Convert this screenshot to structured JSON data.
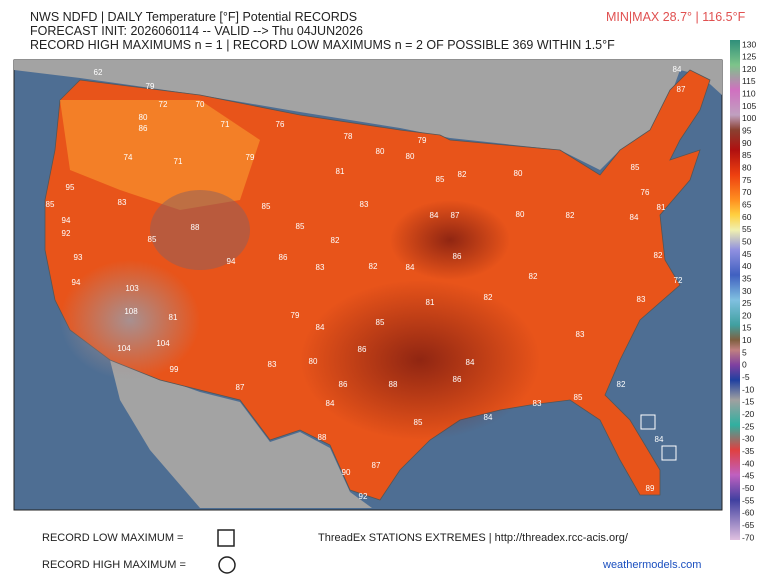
{
  "header": {
    "line1": "NWS NDFD | DAILY Temperature [°F] Potential RECORDS",
    "line2": "FORECAST INIT: 2026060114 -- VALID --> Thu 04JUN2026",
    "line3": "RECORD HIGH MAXIMUMS n = 1 | RECORD LOW MAXIMUMS n = 2 OF POSSIBLE 369 WITHIN 1.5°F",
    "minmax": "MIN|MAX 28.7° | 116.5°F"
  },
  "colorbar": {
    "labels": [
      130,
      125,
      120,
      115,
      110,
      105,
      100,
      95,
      90,
      85,
      80,
      75,
      70,
      65,
      60,
      55,
      50,
      45,
      40,
      35,
      30,
      25,
      20,
      15,
      10,
      5,
      0,
      -5,
      -10,
      -15,
      -20,
      -25,
      -30,
      -35,
      -40,
      -45,
      -50,
      -55,
      -60,
      -65,
      -70
    ]
  },
  "stations": [
    "62",
    "79",
    "70",
    "72",
    "80",
    "86",
    "71",
    "76",
    "78",
    "79",
    "74",
    "71",
    "79",
    "80",
    "81",
    "80",
    "82",
    "85",
    "80",
    "95",
    "85",
    "94",
    "92",
    "83",
    "85",
    "88",
    "85",
    "85",
    "83",
    "82",
    "84",
    "87",
    "80",
    "82",
    "94",
    "86",
    "83",
    "82",
    "84",
    "86",
    "76",
    "81",
    "93",
    "94",
    "103",
    "108",
    "104",
    "104",
    "99",
    "81",
    "87",
    "83",
    "80",
    "84",
    "79",
    "85",
    "86",
    "88",
    "86",
    "84",
    "88",
    "90",
    "92",
    "87",
    "85",
    "84",
    "83",
    "82",
    "84",
    "89",
    "85",
    "86",
    "84",
    "81",
    "82",
    "82",
    "83",
    "84",
    "87",
    "84",
    "85",
    "83",
    "82",
    "72"
  ],
  "footer": {
    "record_low": "RECORD LOW MAXIMUM =",
    "record_high": "RECORD HIGH MAXIMUM =",
    "source": "ThreadEx STATIONS EXTREMES | http://threadex.rcc-acis.org/",
    "brand": "weathermodels.com"
  }
}
